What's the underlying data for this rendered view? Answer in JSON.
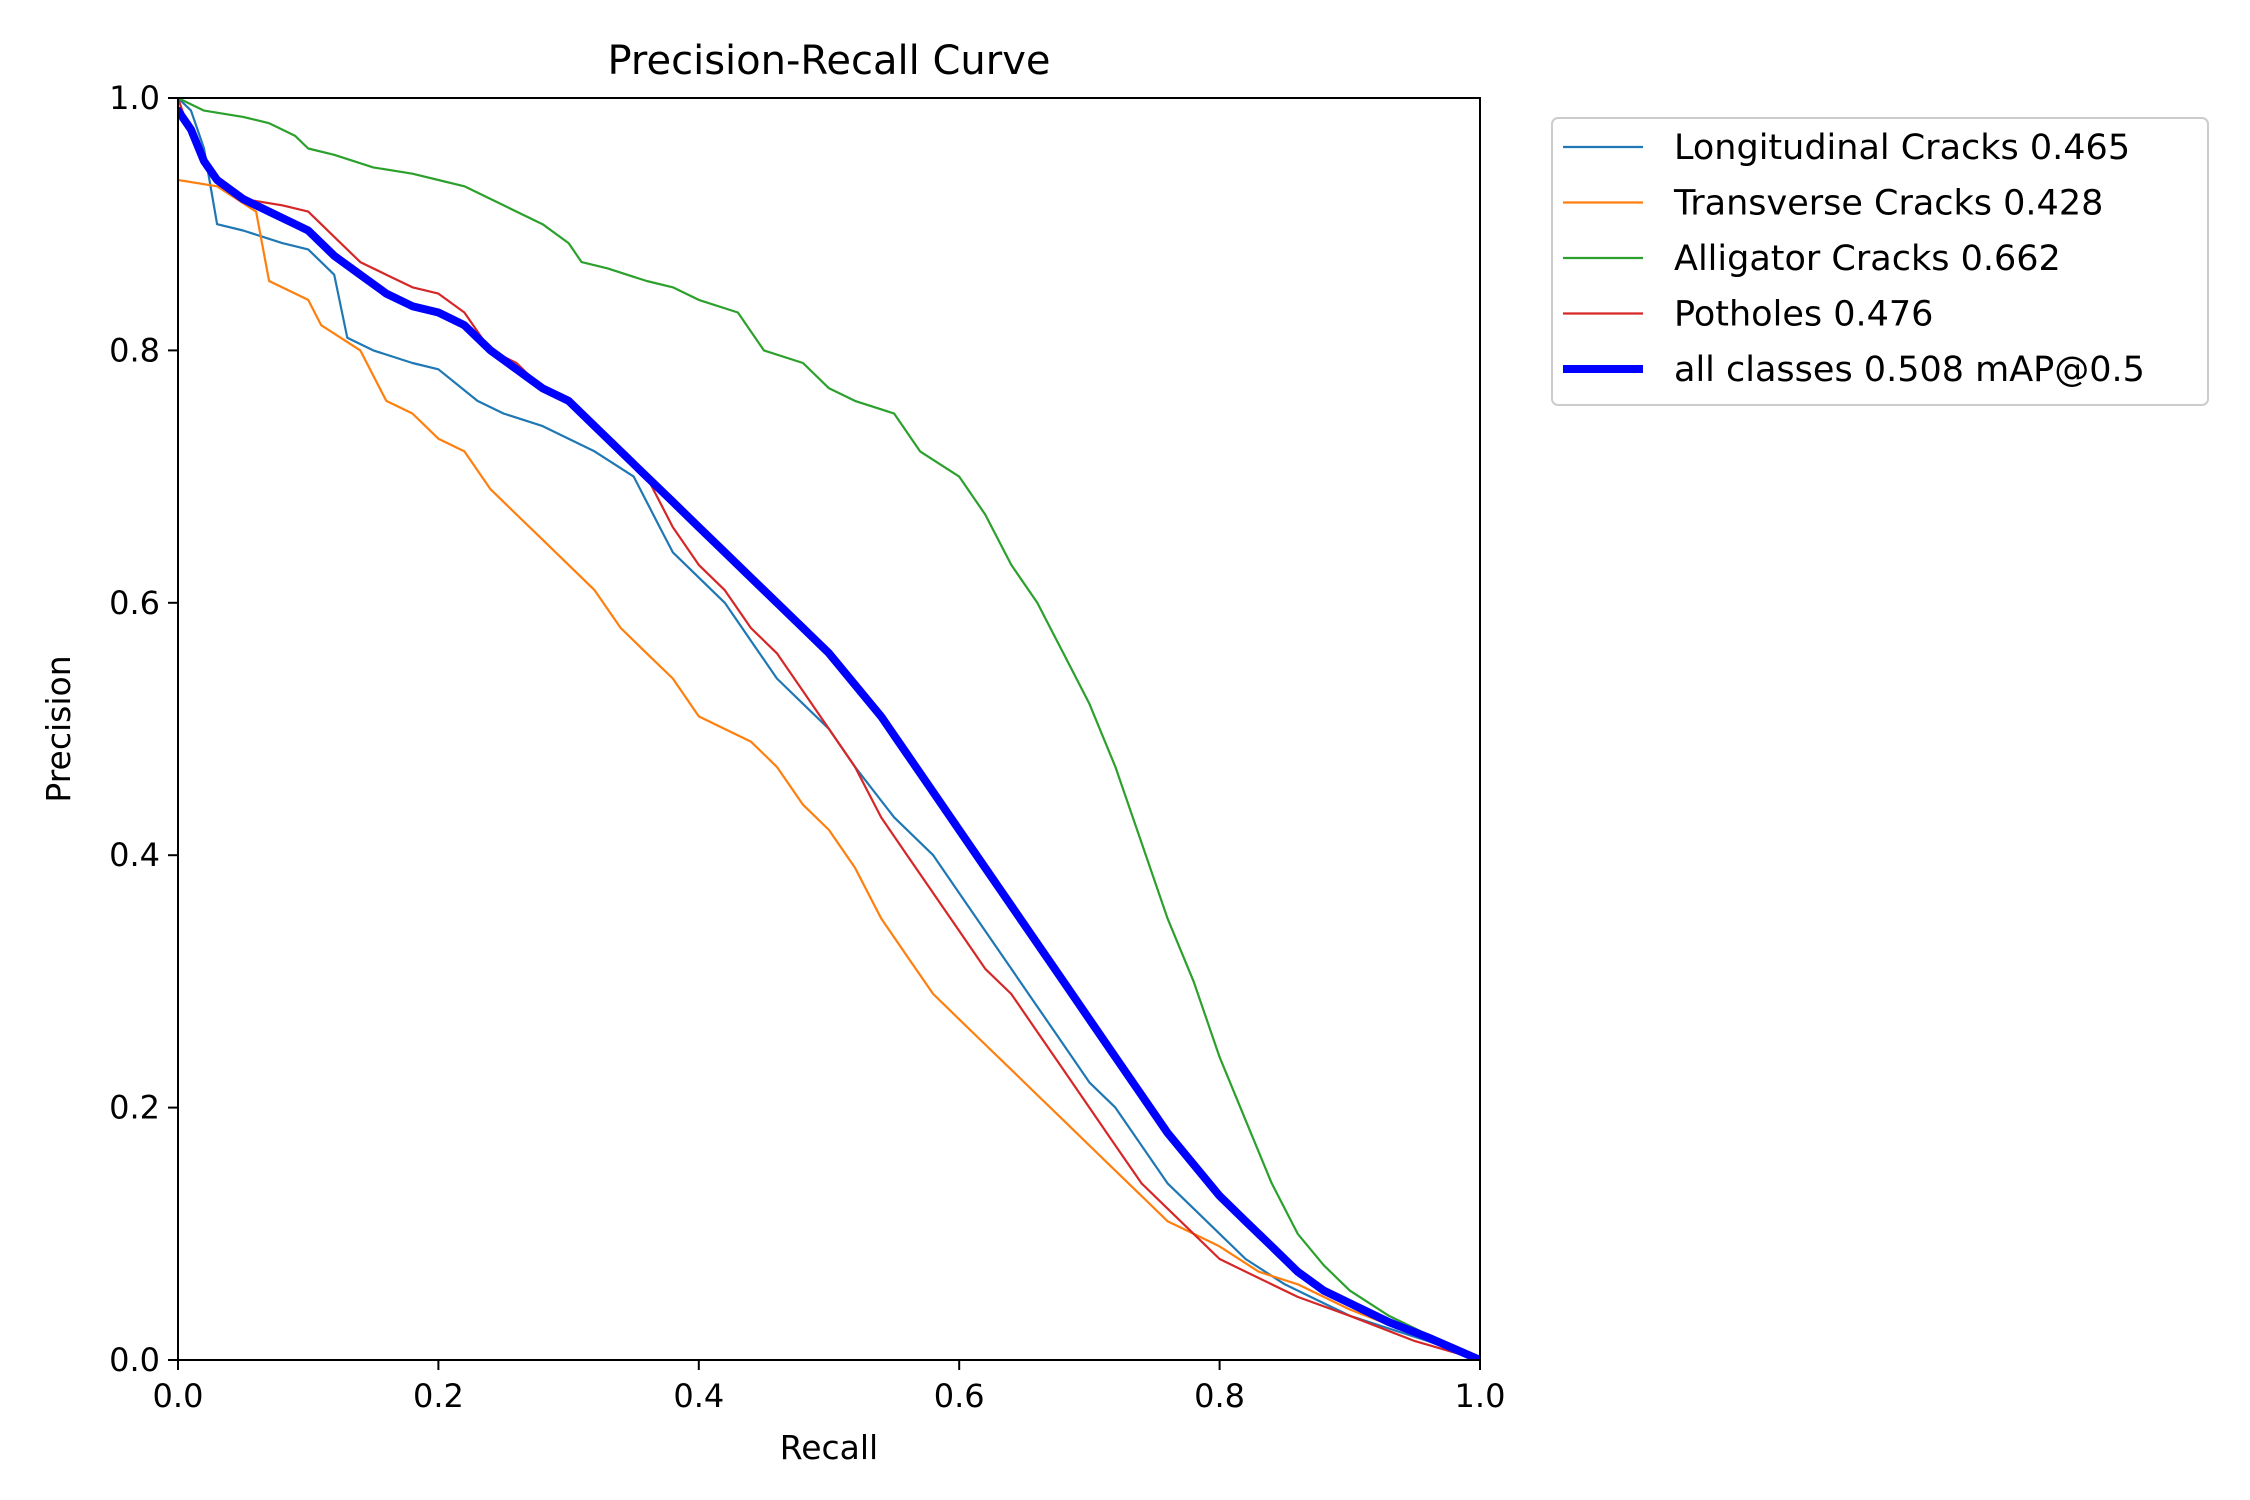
{
  "chart_data": {
    "type": "line",
    "title": "Precision-Recall Curve",
    "xlabel": "Recall",
    "ylabel": "Precision",
    "xlim": [
      0,
      1
    ],
    "ylim": [
      0,
      1
    ],
    "xticks": [
      "0.0",
      "0.2",
      "0.4",
      "0.6",
      "0.8",
      "1.0"
    ],
    "yticks": [
      "0.0",
      "0.2",
      "0.4",
      "0.6",
      "0.8",
      "1.0"
    ],
    "grid": false,
    "legend_placement": "outside-top-right",
    "series": [
      {
        "name": "Longitudinal Cracks 0.465",
        "color": "#1f77b4",
        "width": "thin",
        "points": [
          [
            0.0,
            1.0
          ],
          [
            0.01,
            0.99
          ],
          [
            0.02,
            0.96
          ],
          [
            0.03,
            0.9
          ],
          [
            0.05,
            0.895
          ],
          [
            0.08,
            0.885
          ],
          [
            0.1,
            0.88
          ],
          [
            0.12,
            0.86
          ],
          [
            0.13,
            0.81
          ],
          [
            0.15,
            0.8
          ],
          [
            0.18,
            0.79
          ],
          [
            0.2,
            0.785
          ],
          [
            0.23,
            0.76
          ],
          [
            0.25,
            0.75
          ],
          [
            0.28,
            0.74
          ],
          [
            0.3,
            0.73
          ],
          [
            0.32,
            0.72
          ],
          [
            0.35,
            0.7
          ],
          [
            0.37,
            0.66
          ],
          [
            0.38,
            0.64
          ],
          [
            0.4,
            0.62
          ],
          [
            0.42,
            0.6
          ],
          [
            0.44,
            0.57
          ],
          [
            0.46,
            0.54
          ],
          [
            0.48,
            0.52
          ],
          [
            0.5,
            0.5
          ],
          [
            0.52,
            0.47
          ],
          [
            0.55,
            0.43
          ],
          [
            0.58,
            0.4
          ],
          [
            0.6,
            0.37
          ],
          [
            0.62,
            0.34
          ],
          [
            0.64,
            0.31
          ],
          [
            0.66,
            0.28
          ],
          [
            0.68,
            0.25
          ],
          [
            0.7,
            0.22
          ],
          [
            0.72,
            0.2
          ],
          [
            0.74,
            0.17
          ],
          [
            0.76,
            0.14
          ],
          [
            0.78,
            0.12
          ],
          [
            0.8,
            0.1
          ],
          [
            0.82,
            0.08
          ],
          [
            0.85,
            0.06
          ],
          [
            0.88,
            0.045
          ],
          [
            0.9,
            0.035
          ],
          [
            0.93,
            0.025
          ],
          [
            0.96,
            0.015
          ],
          [
            1.0,
            0.0
          ]
        ]
      },
      {
        "name": "Transverse Cracks 0.428",
        "color": "#ff7f0e",
        "width": "thin",
        "points": [
          [
            0.0,
            0.935
          ],
          [
            0.03,
            0.93
          ],
          [
            0.06,
            0.91
          ],
          [
            0.07,
            0.855
          ],
          [
            0.1,
            0.84
          ],
          [
            0.11,
            0.82
          ],
          [
            0.14,
            0.8
          ],
          [
            0.16,
            0.76
          ],
          [
            0.18,
            0.75
          ],
          [
            0.2,
            0.73
          ],
          [
            0.22,
            0.72
          ],
          [
            0.24,
            0.69
          ],
          [
            0.26,
            0.67
          ],
          [
            0.28,
            0.65
          ],
          [
            0.3,
            0.63
          ],
          [
            0.32,
            0.61
          ],
          [
            0.34,
            0.58
          ],
          [
            0.36,
            0.56
          ],
          [
            0.38,
            0.54
          ],
          [
            0.4,
            0.51
          ],
          [
            0.42,
            0.5
          ],
          [
            0.44,
            0.49
          ],
          [
            0.46,
            0.47
          ],
          [
            0.48,
            0.44
          ],
          [
            0.5,
            0.42
          ],
          [
            0.52,
            0.39
          ],
          [
            0.54,
            0.35
          ],
          [
            0.56,
            0.32
          ],
          [
            0.58,
            0.29
          ],
          [
            0.6,
            0.27
          ],
          [
            0.62,
            0.25
          ],
          [
            0.64,
            0.23
          ],
          [
            0.66,
            0.21
          ],
          [
            0.68,
            0.19
          ],
          [
            0.7,
            0.17
          ],
          [
            0.72,
            0.15
          ],
          [
            0.74,
            0.13
          ],
          [
            0.76,
            0.11
          ],
          [
            0.78,
            0.1
          ],
          [
            0.8,
            0.09
          ],
          [
            0.83,
            0.07
          ],
          [
            0.86,
            0.06
          ],
          [
            0.9,
            0.04
          ],
          [
            0.95,
            0.02
          ],
          [
            1.0,
            0.0
          ]
        ]
      },
      {
        "name": "Alligator Cracks 0.662",
        "color": "#2ca02c",
        "width": "thin",
        "points": [
          [
            0.0,
            1.0
          ],
          [
            0.02,
            0.99
          ],
          [
            0.05,
            0.985
          ],
          [
            0.07,
            0.98
          ],
          [
            0.09,
            0.97
          ],
          [
            0.1,
            0.96
          ],
          [
            0.12,
            0.955
          ],
          [
            0.15,
            0.945
          ],
          [
            0.18,
            0.94
          ],
          [
            0.2,
            0.935
          ],
          [
            0.22,
            0.93
          ],
          [
            0.25,
            0.915
          ],
          [
            0.28,
            0.9
          ],
          [
            0.3,
            0.885
          ],
          [
            0.31,
            0.87
          ],
          [
            0.33,
            0.865
          ],
          [
            0.36,
            0.855
          ],
          [
            0.38,
            0.85
          ],
          [
            0.4,
            0.84
          ],
          [
            0.43,
            0.83
          ],
          [
            0.45,
            0.8
          ],
          [
            0.48,
            0.79
          ],
          [
            0.5,
            0.77
          ],
          [
            0.52,
            0.76
          ],
          [
            0.55,
            0.75
          ],
          [
            0.57,
            0.72
          ],
          [
            0.6,
            0.7
          ],
          [
            0.62,
            0.67
          ],
          [
            0.64,
            0.63
          ],
          [
            0.66,
            0.6
          ],
          [
            0.68,
            0.56
          ],
          [
            0.7,
            0.52
          ],
          [
            0.72,
            0.47
          ],
          [
            0.74,
            0.41
          ],
          [
            0.76,
            0.35
          ],
          [
            0.78,
            0.3
          ],
          [
            0.8,
            0.24
          ],
          [
            0.82,
            0.19
          ],
          [
            0.84,
            0.14
          ],
          [
            0.86,
            0.1
          ],
          [
            0.88,
            0.075
          ],
          [
            0.9,
            0.055
          ],
          [
            0.93,
            0.035
          ],
          [
            0.96,
            0.02
          ],
          [
            1.0,
            0.0
          ]
        ]
      },
      {
        "name": "Potholes 0.476",
        "color": "#d62728",
        "width": "thin",
        "points": [
          [
            0.0,
            1.0
          ],
          [
            0.01,
            0.97
          ],
          [
            0.02,
            0.95
          ],
          [
            0.03,
            0.935
          ],
          [
            0.05,
            0.92
          ],
          [
            0.08,
            0.915
          ],
          [
            0.1,
            0.91
          ],
          [
            0.12,
            0.89
          ],
          [
            0.14,
            0.87
          ],
          [
            0.16,
            0.86
          ],
          [
            0.18,
            0.85
          ],
          [
            0.2,
            0.845
          ],
          [
            0.22,
            0.83
          ],
          [
            0.24,
            0.8
          ],
          [
            0.26,
            0.79
          ],
          [
            0.28,
            0.77
          ],
          [
            0.3,
            0.76
          ],
          [
            0.32,
            0.74
          ],
          [
            0.34,
            0.72
          ],
          [
            0.36,
            0.7
          ],
          [
            0.38,
            0.66
          ],
          [
            0.4,
            0.63
          ],
          [
            0.42,
            0.61
          ],
          [
            0.44,
            0.58
          ],
          [
            0.46,
            0.56
          ],
          [
            0.48,
            0.53
          ],
          [
            0.5,
            0.5
          ],
          [
            0.52,
            0.47
          ],
          [
            0.54,
            0.43
          ],
          [
            0.56,
            0.4
          ],
          [
            0.58,
            0.37
          ],
          [
            0.6,
            0.34
          ],
          [
            0.62,
            0.31
          ],
          [
            0.64,
            0.29
          ],
          [
            0.66,
            0.26
          ],
          [
            0.68,
            0.23
          ],
          [
            0.7,
            0.2
          ],
          [
            0.72,
            0.17
          ],
          [
            0.74,
            0.14
          ],
          [
            0.76,
            0.12
          ],
          [
            0.78,
            0.1
          ],
          [
            0.8,
            0.08
          ],
          [
            0.83,
            0.065
          ],
          [
            0.86,
            0.05
          ],
          [
            0.9,
            0.035
          ],
          [
            0.95,
            0.015
          ],
          [
            1.0,
            0.0
          ]
        ]
      },
      {
        "name": "all classes 0.508 mAP@0.5",
        "color": "#0000ff",
        "width": "thick",
        "points": [
          [
            0.0,
            0.99
          ],
          [
            0.01,
            0.975
          ],
          [
            0.02,
            0.95
          ],
          [
            0.03,
            0.935
          ],
          [
            0.05,
            0.92
          ],
          [
            0.07,
            0.91
          ],
          [
            0.09,
            0.9
          ],
          [
            0.1,
            0.895
          ],
          [
            0.12,
            0.875
          ],
          [
            0.14,
            0.86
          ],
          [
            0.16,
            0.845
          ],
          [
            0.18,
            0.835
          ],
          [
            0.2,
            0.83
          ],
          [
            0.22,
            0.82
          ],
          [
            0.24,
            0.8
          ],
          [
            0.26,
            0.785
          ],
          [
            0.28,
            0.77
          ],
          [
            0.3,
            0.76
          ],
          [
            0.32,
            0.74
          ],
          [
            0.34,
            0.72
          ],
          [
            0.36,
            0.7
          ],
          [
            0.38,
            0.68
          ],
          [
            0.4,
            0.66
          ],
          [
            0.42,
            0.64
          ],
          [
            0.44,
            0.62
          ],
          [
            0.46,
            0.6
          ],
          [
            0.48,
            0.58
          ],
          [
            0.5,
            0.56
          ],
          [
            0.52,
            0.535
          ],
          [
            0.54,
            0.51
          ],
          [
            0.56,
            0.48
          ],
          [
            0.58,
            0.45
          ],
          [
            0.6,
            0.42
          ],
          [
            0.62,
            0.39
          ],
          [
            0.64,
            0.36
          ],
          [
            0.66,
            0.33
          ],
          [
            0.68,
            0.3
          ],
          [
            0.7,
            0.27
          ],
          [
            0.72,
            0.24
          ],
          [
            0.74,
            0.21
          ],
          [
            0.76,
            0.18
          ],
          [
            0.78,
            0.155
          ],
          [
            0.8,
            0.13
          ],
          [
            0.82,
            0.11
          ],
          [
            0.84,
            0.09
          ],
          [
            0.86,
            0.07
          ],
          [
            0.88,
            0.055
          ],
          [
            0.9,
            0.045
          ],
          [
            0.93,
            0.03
          ],
          [
            0.96,
            0.018
          ],
          [
            1.0,
            0.0
          ]
        ]
      }
    ]
  }
}
